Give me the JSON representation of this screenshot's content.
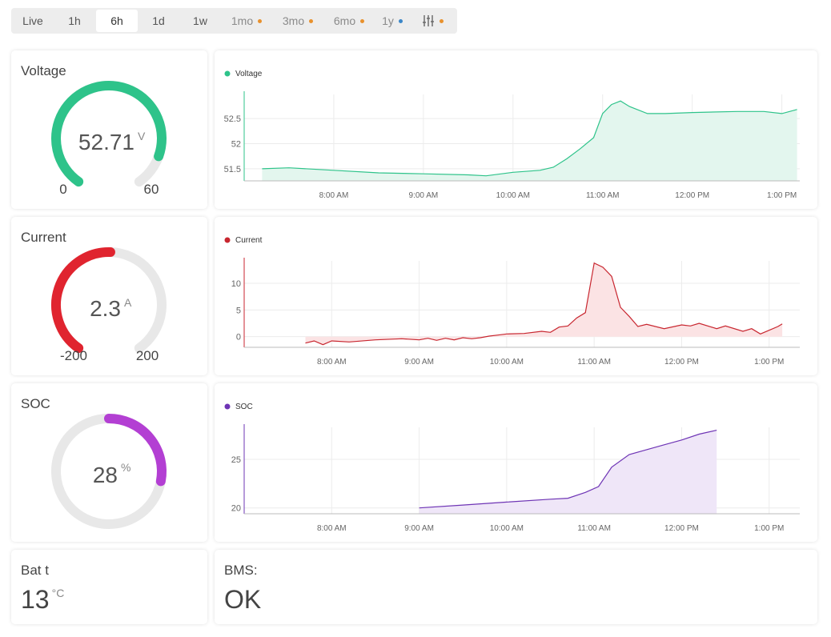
{
  "timebar": {
    "items": [
      {
        "label": "Live",
        "dot": null,
        "muted": false
      },
      {
        "label": "1h",
        "dot": null,
        "muted": false
      },
      {
        "label": "6h",
        "dot": null,
        "muted": false,
        "active": true
      },
      {
        "label": "1d",
        "dot": null,
        "muted": false
      },
      {
        "label": "1w",
        "dot": null,
        "muted": false
      },
      {
        "label": "1mo",
        "dot": "#e8912d",
        "muted": true
      },
      {
        "label": "3mo",
        "dot": "#e8912d",
        "muted": true
      },
      {
        "label": "6mo",
        "dot": "#e8912d",
        "muted": true
      },
      {
        "label": "1y",
        "dot": "#3a86c8",
        "muted": true
      }
    ],
    "settings_icon": "sliders-icon",
    "settings_dot": "#e8912d"
  },
  "gauges": {
    "voltage": {
      "title": "Voltage",
      "value": "52.71",
      "unit": "V",
      "min": "0",
      "max": "60",
      "min_num": 0,
      "max_num": 60,
      "value_num": 52.71,
      "color": "#2ec38a",
      "full_circle": false
    },
    "current": {
      "title": "Current",
      "value": "2.3",
      "unit": "A",
      "min": "-200",
      "max": "200",
      "min_num": -200,
      "max_num": 200,
      "value_num": 2.3,
      "color": "#e0242f",
      "full_circle": false
    },
    "soc": {
      "title": "SOC",
      "value": "28",
      "unit": "%",
      "min_num": 0,
      "max_num": 100,
      "value_num": 28,
      "color": "#b33fd3",
      "full_circle": true
    }
  },
  "bat_temp": {
    "title": "Bat t",
    "value": "13",
    "unit": "°C"
  },
  "bms": {
    "title": "BMS:",
    "value": "OK"
  },
  "chart_data": [
    {
      "type": "area",
      "series": [
        {
          "name": "Voltage",
          "color": "#2ec38a",
          "fill": "#e3f6ee",
          "x": [
            7.2,
            7.5,
            8.0,
            8.5,
            9.0,
            9.5,
            9.7,
            10.0,
            10.3,
            10.45,
            10.6,
            10.75,
            10.9,
            11.0,
            11.1,
            11.2,
            11.3,
            11.5,
            11.7,
            12.0,
            12.5,
            12.8,
            13.0,
            13.17
          ],
          "values": [
            51.5,
            51.52,
            51.47,
            51.42,
            51.4,
            51.38,
            51.36,
            51.43,
            51.47,
            51.53,
            51.7,
            51.9,
            52.12,
            52.6,
            52.78,
            52.85,
            52.74,
            52.6,
            52.6,
            52.62,
            52.64,
            52.64,
            52.6,
            52.68
          ]
        }
      ],
      "x_ticks": [
        "8:00 AM",
        "9:00 AM",
        "10:00 AM",
        "11:00 AM",
        "12:00 PM",
        "1:00 PM"
      ],
      "x_tick_values": [
        8,
        9,
        10,
        11,
        12,
        13
      ],
      "y_ticks": [
        "51.5",
        "52",
        "52.5"
      ],
      "y_tick_values": [
        51.5,
        52,
        52.5
      ],
      "xlim": [
        7.0,
        13.2
      ],
      "ylim": [
        51.26,
        52.98
      ]
    },
    {
      "type": "area",
      "series": [
        {
          "name": "Current",
          "color": "#c8262f",
          "fill": "#fbe3e4",
          "x": [
            7.7,
            7.8,
            7.9,
            8.0,
            8.2,
            8.5,
            8.8,
            9.0,
            9.1,
            9.2,
            9.3,
            9.4,
            9.5,
            9.6,
            9.7,
            9.8,
            9.9,
            10.0,
            10.2,
            10.4,
            10.5,
            10.6,
            10.7,
            10.8,
            10.9,
            11.0,
            11.1,
            11.2,
            11.3,
            11.4,
            11.5,
            11.6,
            11.8,
            12.0,
            12.1,
            12.2,
            12.4,
            12.5,
            12.7,
            12.8,
            12.9,
            13.0,
            13.1,
            13.15
          ],
          "values": [
            -1.2,
            -0.8,
            -1.5,
            -0.8,
            -1.0,
            -0.6,
            -0.4,
            -0.6,
            -0.3,
            -0.7,
            -0.3,
            -0.6,
            -0.2,
            -0.4,
            -0.2,
            0.1,
            0.3,
            0.5,
            0.6,
            1.0,
            0.8,
            1.8,
            2.0,
            3.5,
            4.5,
            13.8,
            13.0,
            11.3,
            5.5,
            3.8,
            1.9,
            2.3,
            1.5,
            2.2,
            2.0,
            2.5,
            1.5,
            2.0,
            1.0,
            1.5,
            0.5,
            1.2,
            1.9,
            2.4
          ]
        }
      ],
      "x_ticks": [
        "8:00 AM",
        "9:00 AM",
        "10:00 AM",
        "11:00 AM",
        "12:00 PM",
        "1:00 PM"
      ],
      "x_tick_values": [
        8,
        9,
        10,
        11,
        12,
        13
      ],
      "y_ticks": [
        "0",
        "5",
        "10"
      ],
      "y_tick_values": [
        0,
        5,
        10
      ],
      "xlim": [
        7.0,
        13.35
      ],
      "ylim": [
        -2.0,
        14.2
      ]
    },
    {
      "type": "area",
      "series": [
        {
          "name": "SOC",
          "color": "#6e34b5",
          "fill": "#efe6f8",
          "x": [
            9.0,
            9.5,
            10.0,
            10.5,
            10.7,
            10.9,
            11.05,
            11.2,
            11.4,
            11.6,
            11.8,
            12.0,
            12.2,
            12.4
          ],
          "values": [
            20.0,
            20.3,
            20.6,
            20.9,
            21.0,
            21.6,
            22.2,
            24.2,
            25.5,
            26.0,
            26.5,
            27.0,
            27.6,
            28.0
          ]
        }
      ],
      "x_ticks": [
        "8:00 AM",
        "9:00 AM",
        "10:00 AM",
        "11:00 AM",
        "12:00 PM",
        "1:00 PM"
      ],
      "x_tick_values": [
        8,
        9,
        10,
        11,
        12,
        13
      ],
      "y_ticks": [
        "20",
        "25"
      ],
      "y_tick_values": [
        20,
        25
      ],
      "xlim": [
        7.0,
        13.35
      ],
      "ylim": [
        19.4,
        28.3
      ]
    }
  ]
}
